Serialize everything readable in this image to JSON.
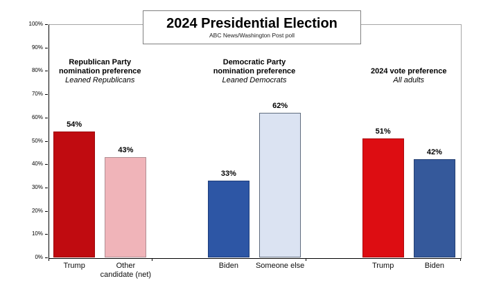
{
  "chart_data": {
    "type": "bar",
    "title": "2024 Presidential Election",
    "subtitle": "ABC News/Washington Post poll",
    "xlabel": "",
    "ylabel": "",
    "ylim": [
      0,
      100
    ],
    "ytick_step": 10,
    "ytick_labels": [
      "0%",
      "10%",
      "20%",
      "30%",
      "40%",
      "50%",
      "60%",
      "70%",
      "80%",
      "90%",
      "100%"
    ],
    "grid": false,
    "legend_position": "none",
    "slots": 8,
    "group_tick_boundaries": [
      0,
      2,
      5,
      8
    ],
    "groups": [
      {
        "header_lines": [
          "Republican Party",
          "nomination preference"
        ],
        "header_note": "Leaned Republicans",
        "bars": [
          {
            "slot": 0,
            "label_lines": [
              "Trump"
            ],
            "value": 54,
            "display": "54%",
            "fill": "#c00b10",
            "border": "#9d080c"
          },
          {
            "slot": 1,
            "label_lines": [
              "Other",
              "candidate (net)"
            ],
            "value": 43,
            "display": "43%",
            "fill": "#f0b4b9",
            "border": "#b08e93"
          }
        ]
      },
      {
        "header_lines": [
          "Democratic Party",
          "nomination preference"
        ],
        "header_note": "Leaned Democrats",
        "bars": [
          {
            "slot": 3,
            "label_lines": [
              "Biden"
            ],
            "value": 33,
            "display": "33%",
            "fill": "#2d56a5",
            "border": "#1d3c79"
          },
          {
            "slot": 4,
            "label_lines": [
              "Someone else"
            ],
            "value": 62,
            "display": "62%",
            "fill": "#dbe3f2",
            "border": "#5f6b7d"
          }
        ]
      },
      {
        "header_lines": [
          "2024 vote preference"
        ],
        "header_note": "All adults",
        "bars": [
          {
            "slot": 6,
            "label_lines": [
              "Trump"
            ],
            "value": 51,
            "display": "51%",
            "fill": "#dd0d12",
            "border": "#ab0a0e"
          },
          {
            "slot": 7,
            "label_lines": [
              "Biden"
            ],
            "value": 42,
            "display": "42%",
            "fill": "#35599b",
            "border": "#243f72"
          }
        ]
      }
    ]
  }
}
